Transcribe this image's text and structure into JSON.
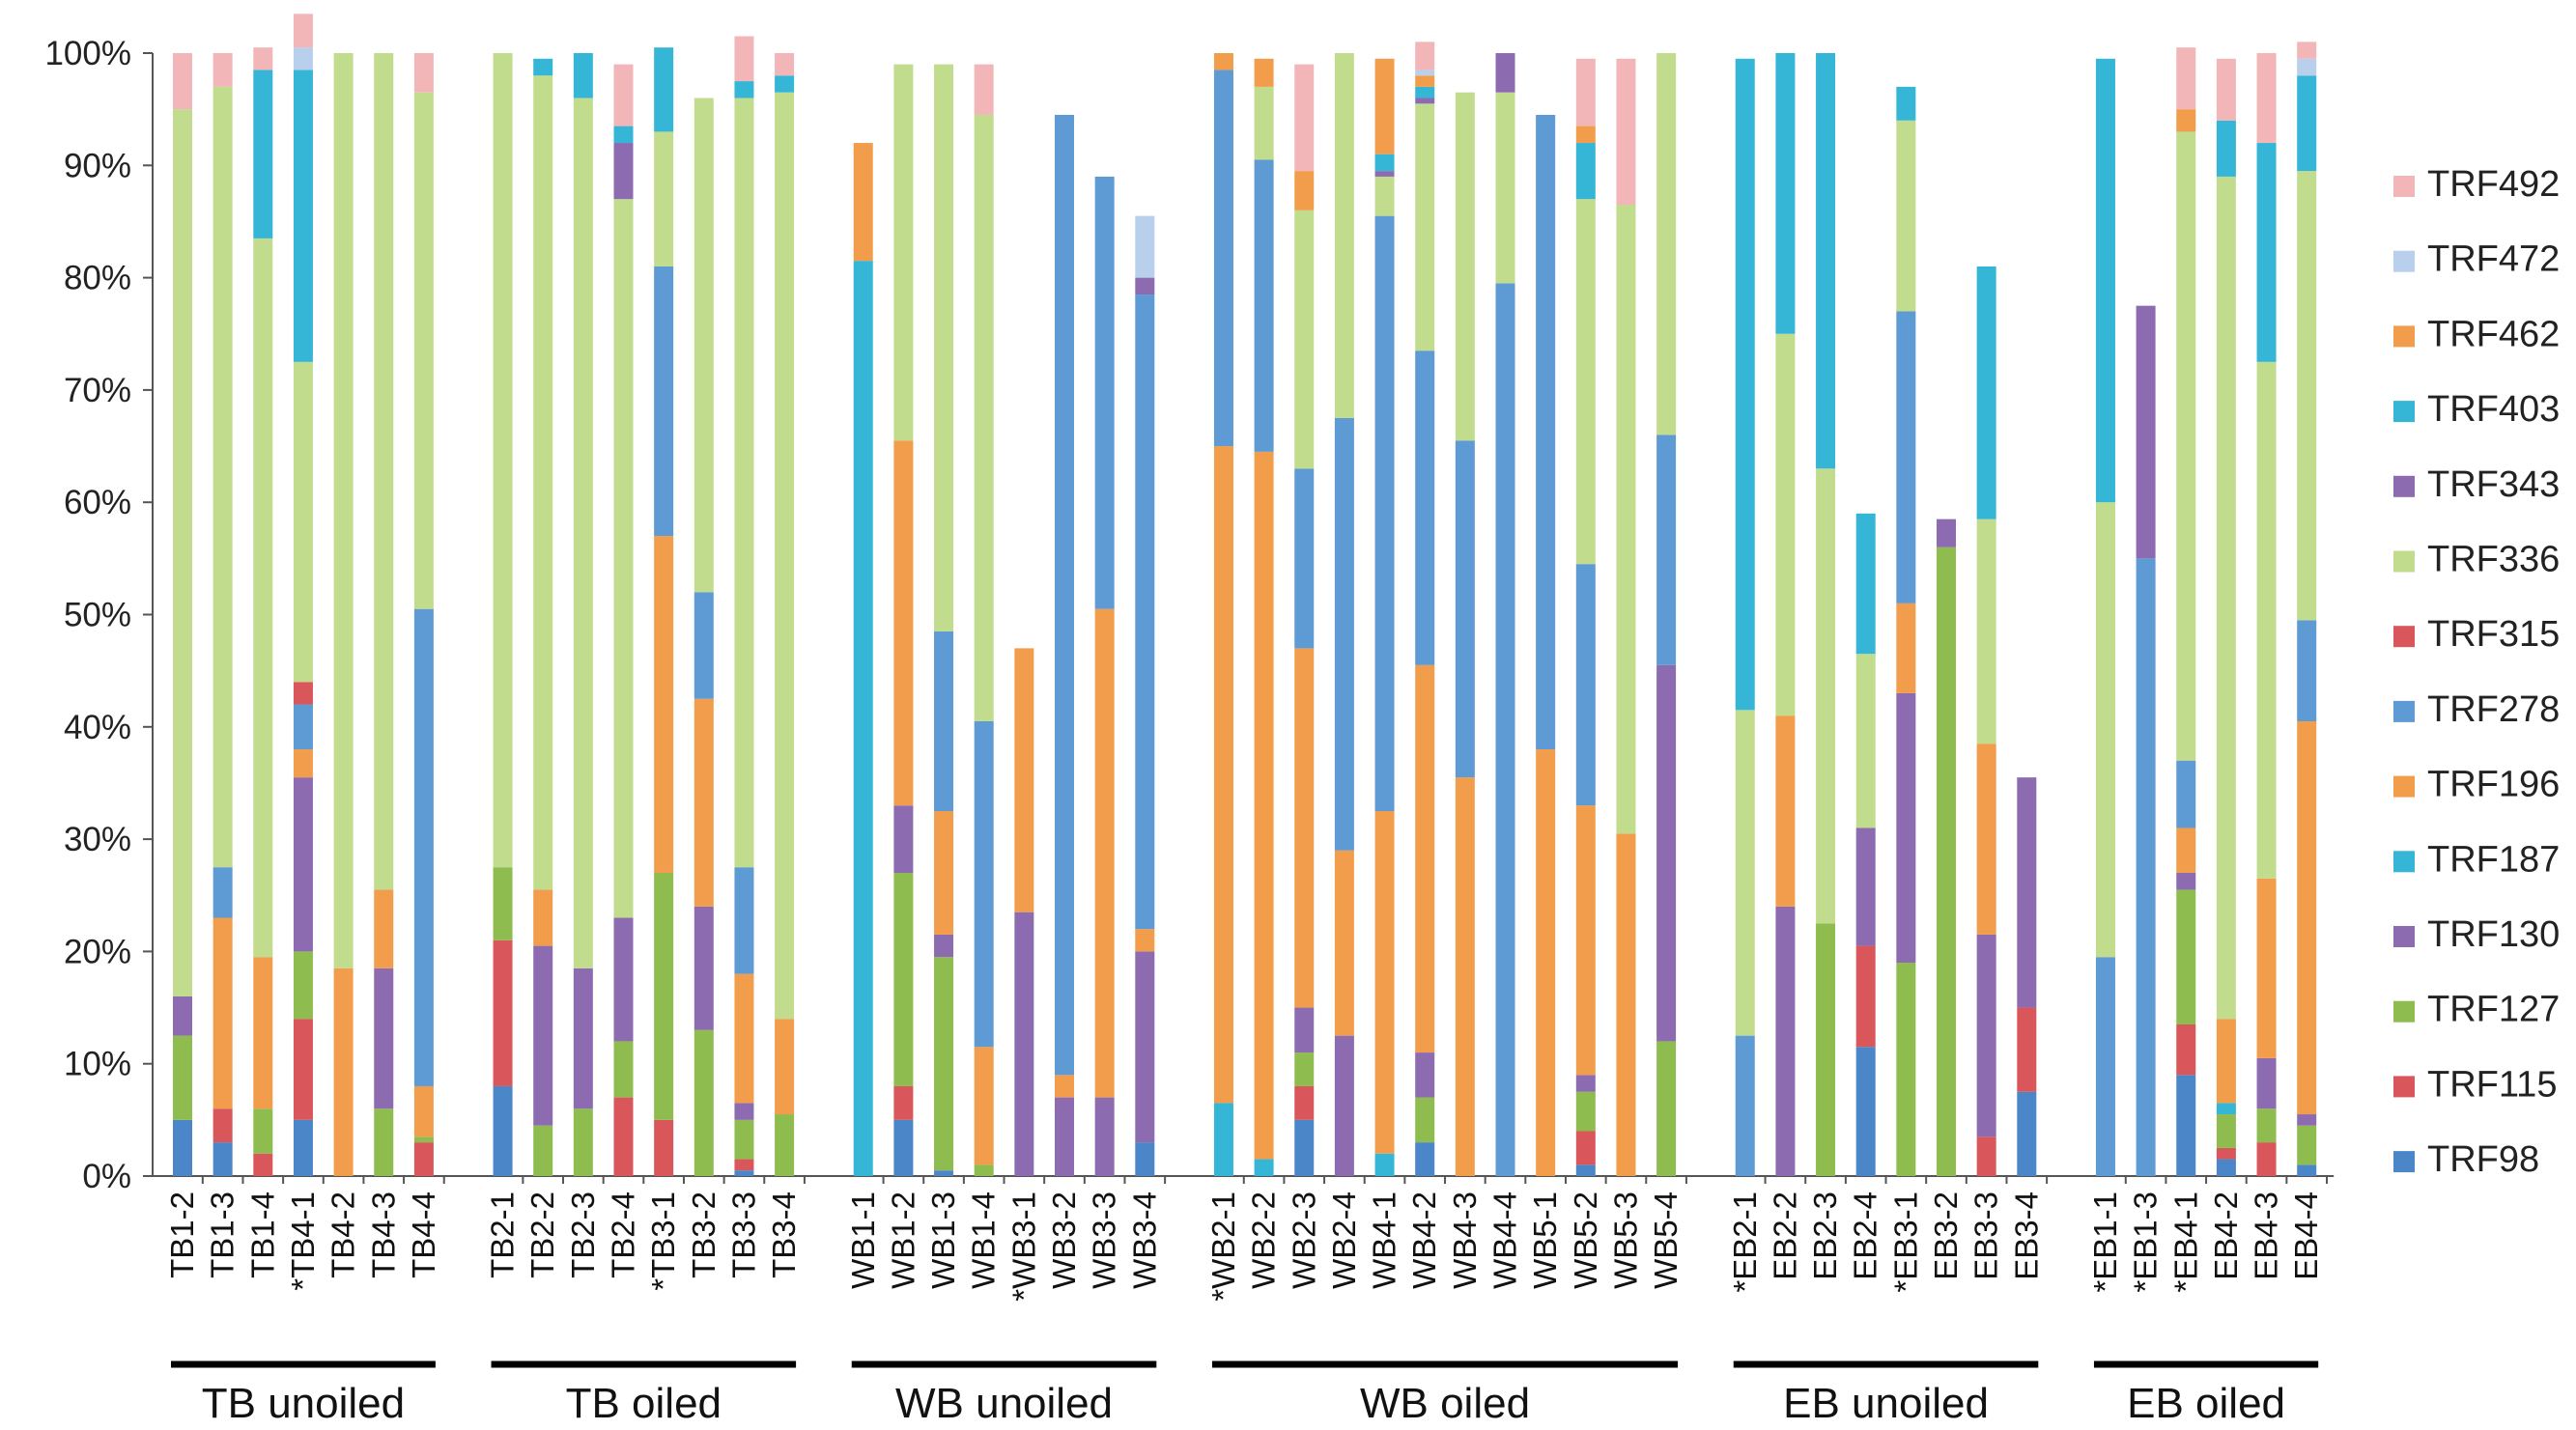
{
  "chart_data": {
    "type": "bar",
    "stacked": true,
    "percent": true,
    "title": "",
    "xlabel": "",
    "ylabel": "",
    "ylim": [
      0,
      100
    ],
    "yticks": [
      "0%",
      "10%",
      "20%",
      "30%",
      "40%",
      "50%",
      "60%",
      "70%",
      "80%",
      "90%",
      "100%"
    ],
    "grid": false,
    "legend_position": "right",
    "categories": [
      "TB1-2",
      "TB1-3",
      "TB1-4",
      "*TB4-1",
      "TB4-2",
      "TB4-3",
      "TB4-4",
      "TB2-1",
      "TB2-2",
      "TB2-3",
      "TB2-4",
      "*TB3-1",
      "TB3-2",
      "TB3-3",
      "TB3-4",
      "WB1-1",
      "WB1-2",
      "WB1-3",
      "WB1-4",
      "*WB3-1",
      "WB3-2",
      "WB3-3",
      "WB3-4",
      "*WB2-1",
      "WB2-2",
      "WB2-3",
      "WB2-4",
      "WB4-1",
      "WB4-2",
      "WB4-3",
      "WB4-4",
      "WB5-1",
      "WB5-2",
      "WB5-3",
      "WB5-4",
      "*EB2-1",
      "EB2-2",
      "EB2-3",
      "EB2-4",
      "*EB3-1",
      "EB3-2",
      "EB3-3",
      "EB3-4",
      "*EB1-1",
      "*EB1-3",
      "*EB4-1",
      "EB4-2",
      "EB4-3",
      "EB4-4"
    ],
    "groups": [
      {
        "label": "TB unoiled",
        "count": 7
      },
      {
        "label": "TB oiled",
        "count": 8
      },
      {
        "label": "WB unoiled",
        "count": 8
      },
      {
        "label": "WB oiled",
        "count": 12
      },
      {
        "label": "EB unoiled",
        "count": 8
      },
      {
        "label": "EB oiled",
        "count": 6
      }
    ],
    "series": [
      {
        "name": "TRF98",
        "color": "#4a86c8",
        "values": [
          5,
          3,
          0,
          5,
          0,
          0,
          0,
          8,
          0,
          0,
          0,
          0,
          0,
          0.5,
          0,
          0,
          5,
          0.5,
          0,
          0,
          0,
          0,
          3,
          0,
          0,
          5,
          0,
          0,
          3,
          0,
          0,
          0,
          1,
          0,
          0,
          0,
          0,
          0,
          11.5,
          0,
          0,
          0,
          7.5,
          0,
          0,
          9,
          1.5,
          0,
          1
        ]
      },
      {
        "name": "TRF115",
        "color": "#d9575a",
        "values": [
          0,
          3,
          2,
          9,
          0,
          0,
          3,
          13,
          0,
          0,
          7,
          5,
          0,
          1,
          0,
          0,
          3,
          0,
          0,
          0,
          0,
          0,
          0,
          0,
          0,
          3,
          0,
          0,
          0,
          0,
          0,
          0,
          3,
          0,
          0,
          0,
          0,
          0,
          9,
          0,
          0,
          3.5,
          7.5,
          0,
          0,
          4.5,
          1,
          3,
          0
        ]
      },
      {
        "name": "TRF127",
        "color": "#8fbc4f",
        "values": [
          7.5,
          0,
          4,
          6,
          0,
          6,
          0.5,
          6.5,
          4.5,
          6,
          5,
          22,
          13,
          3.5,
          5.5,
          0,
          19,
          19,
          1,
          0,
          0,
          0,
          0,
          0,
          0,
          3,
          0,
          0,
          4,
          0,
          0,
          0,
          3.5,
          0,
          12,
          0,
          0,
          22.5,
          0,
          19,
          56,
          0,
          0,
          0,
          0,
          12,
          3,
          3,
          3.5
        ]
      },
      {
        "name": "TRF130",
        "color": "#8d6bb0",
        "values": [
          3.5,
          0,
          0,
          15.5,
          0,
          12.5,
          0,
          0,
          16,
          12.5,
          11,
          0,
          11,
          1.5,
          0,
          0,
          6,
          2,
          0,
          23.5,
          7,
          7,
          17,
          0,
          0,
          4,
          12.5,
          0,
          4,
          0,
          0,
          0,
          1.5,
          0,
          33.5,
          0,
          24,
          0,
          10.5,
          24,
          0,
          18,
          0,
          0,
          0,
          1.5,
          0,
          4.5,
          1
        ]
      },
      {
        "name": "TRF187",
        "color": "#35b6d6",
        "values": [
          0,
          0,
          0,
          0,
          0,
          0,
          0,
          0,
          0,
          0,
          0,
          0,
          0,
          0,
          0,
          0,
          0,
          0,
          0,
          0,
          0,
          0,
          0,
          6.5,
          1.5,
          0,
          0,
          2,
          0,
          0,
          0,
          0,
          0,
          0,
          0,
          0,
          0,
          0,
          0,
          0,
          0,
          0,
          0,
          0,
          0,
          0,
          1,
          0,
          0
        ]
      },
      {
        "name": "TRF196",
        "color": "#f29d4b",
        "values": [
          0,
          17,
          13.5,
          2.5,
          18.5,
          7,
          4.5,
          0,
          5,
          0,
          0,
          30,
          18.5,
          11.5,
          8.5,
          0,
          32.5,
          11,
          10.5,
          23.5,
          2,
          43.5,
          2,
          58.5,
          63,
          32,
          16.5,
          30.5,
          34.5,
          35.5,
          0,
          38,
          24,
          30.5,
          0,
          0,
          17,
          0,
          0,
          8,
          0,
          17,
          0,
          0,
          0,
          4,
          7.5,
          16,
          35
        ]
      },
      {
        "name": "TRF278",
        "color": "#5e9ad4",
        "values": [
          0,
          4.5,
          0,
          4,
          0,
          0,
          42.5,
          0,
          0,
          0,
          0,
          24,
          9.5,
          9.5,
          0,
          0,
          0,
          16,
          29,
          0,
          85.5,
          38.5,
          56.5,
          33.5,
          26,
          16,
          38.5,
          53,
          28,
          30,
          79.5,
          56.5,
          21.5,
          0,
          20.5,
          12.5,
          0,
          0,
          0,
          26,
          0,
          0,
          0,
          19.5,
          55,
          6,
          0,
          0,
          9
        ]
      },
      {
        "name": "TRF315",
        "color": "#d9575a",
        "values": [
          0,
          0,
          0,
          2,
          0,
          0,
          0,
          0,
          0,
          0,
          0,
          0,
          0,
          0,
          0,
          0,
          0,
          0,
          0,
          0,
          0,
          0,
          0,
          0,
          0,
          0,
          0,
          0,
          0,
          0,
          0,
          0,
          0,
          0,
          0,
          0,
          0,
          0,
          0,
          0,
          0,
          0,
          0,
          0,
          0,
          0,
          0,
          0,
          0
        ]
      },
      {
        "name": "TRF336",
        "color": "#c2dc8e",
        "values": [
          79,
          69.5,
          64,
          28.5,
          81.5,
          74.5,
          46,
          72.5,
          72.5,
          77.5,
          64,
          12,
          44,
          68.5,
          82.5,
          0,
          33.5,
          50.5,
          54,
          0,
          0,
          0,
          0,
          0,
          6.5,
          23,
          32.5,
          3.5,
          22,
          31,
          17,
          0,
          32.5,
          56,
          34,
          29,
          34,
          40.5,
          15.5,
          17,
          0,
          20,
          0,
          40.5,
          0,
          56,
          75,
          46,
          40
        ]
      },
      {
        "name": "TRF343",
        "color": "#8d6bb0",
        "values": [
          0,
          0,
          0,
          0,
          0,
          0,
          0,
          0,
          0,
          0,
          5,
          0,
          0,
          0,
          0,
          0,
          0,
          0,
          0,
          0,
          0,
          0,
          1.5,
          0,
          0,
          0,
          0,
          0.5,
          0.5,
          0,
          3.5,
          0,
          0,
          0,
          0,
          0,
          0,
          0,
          0,
          0,
          2.5,
          0,
          20.5,
          0,
          22.5,
          0,
          0,
          0,
          0
        ]
      },
      {
        "name": "TRF403",
        "color": "#35b6d6",
        "values": [
          0,
          0,
          15,
          26,
          0,
          0,
          0,
          0,
          1.5,
          4,
          1.5,
          7.5,
          0,
          1.5,
          1.5,
          81.5,
          0,
          0,
          0,
          0,
          0,
          0,
          0,
          0,
          0,
          0,
          0,
          1.5,
          1,
          0,
          0,
          0,
          5,
          0,
          0,
          58,
          25,
          37,
          12.5,
          3,
          0,
          22.5,
          0,
          39.5,
          0,
          0,
          5,
          19.5,
          8.5
        ]
      },
      {
        "name": "TRF462",
        "color": "#f29d4b",
        "values": [
          0,
          0,
          0,
          0,
          0,
          0,
          0,
          0,
          0,
          0,
          0,
          0,
          0,
          0,
          0,
          10.5,
          0,
          0,
          0,
          0,
          0,
          0,
          0,
          1.5,
          2.5,
          3.5,
          0,
          8.5,
          1,
          0,
          0,
          0,
          1.5,
          0,
          0,
          0,
          0,
          0,
          0,
          0,
          0,
          0,
          0,
          0,
          0,
          2,
          0,
          0,
          0
        ]
      },
      {
        "name": "TRF472",
        "color": "#b9d0ec",
        "values": [
          0,
          0,
          0,
          2,
          0,
          0,
          0,
          0,
          0,
          0,
          0,
          0,
          0,
          0,
          0,
          0,
          0,
          0,
          0,
          0,
          0,
          0,
          5.5,
          0,
          0,
          0,
          0,
          0,
          0.5,
          0,
          0,
          0,
          0,
          0,
          0,
          0,
          0,
          0,
          0,
          0,
          0,
          0,
          0,
          0,
          0,
          0,
          0,
          0,
          1.5
        ]
      },
      {
        "name": "TRF492",
        "color": "#f2b6b8",
        "values": [
          5,
          3,
          2,
          3,
          0,
          0,
          3.5,
          0,
          0,
          0,
          5.5,
          0,
          0,
          4,
          2,
          0,
          0,
          0,
          4.5,
          0,
          0,
          0,
          0,
          0,
          0,
          9.5,
          0,
          0,
          2.5,
          0,
          0,
          0,
          6,
          13,
          0,
          0,
          0,
          0,
          0,
          0,
          0,
          0,
          0,
          0,
          0,
          5.5,
          5.5,
          8,
          1.5
        ]
      }
    ],
    "legend_order": [
      "TRF492",
      "TRF472",
      "TRF462",
      "TRF403",
      "TRF343",
      "TRF336",
      "TRF315",
      "TRF278",
      "TRF196",
      "TRF187",
      "TRF130",
      "TRF127",
      "TRF115",
      "TRF98"
    ]
  }
}
